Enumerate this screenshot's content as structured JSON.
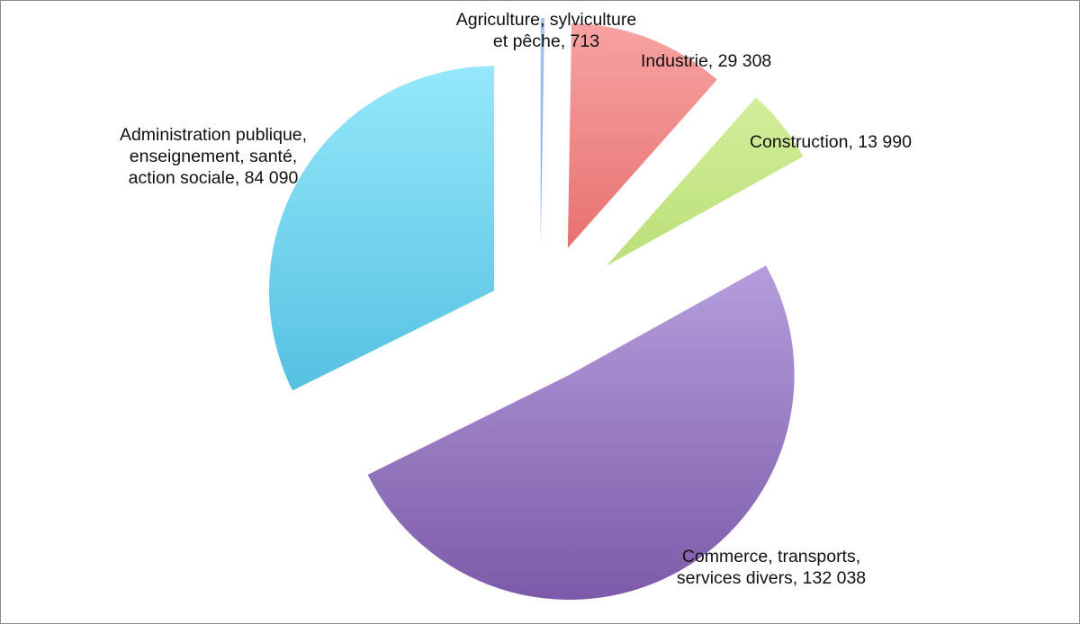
{
  "chart_data": {
    "type": "pie",
    "exploded": true,
    "gradient_fill": true,
    "slices": [
      {
        "name": "Agriculture, sylviculture et pêche",
        "value": 713,
        "label_lines": [
          "Agriculture, sylviculture",
          "et pêche, 713"
        ],
        "color_light": "#a9c6ef",
        "color_dark": "#4f7fc6"
      },
      {
        "name": "Industrie",
        "value": 29308,
        "label_lines": [
          "Industrie, 29 308"
        ],
        "color_light": "#f7a3a2",
        "color_dark": "#d8403f"
      },
      {
        "name": "Construction",
        "value": 13990,
        "label_lines": [
          "Construction, 13 990"
        ],
        "color_light": "#dcf2a7",
        "color_dark": "#98cd48"
      },
      {
        "name": "Commerce, transports, services divers",
        "value": 132038,
        "label_lines": [
          "Commerce, transports,",
          "services divers, 132 038"
        ],
        "color_light": "#c9b5ee",
        "color_dark": "#7c5aa9"
      },
      {
        "name": "Administration publique, enseignement, santé, action sociale",
        "value": 84090,
        "label_lines": [
          "Administration publique,",
          "enseignement, santé,",
          "action sociale, 84 090"
        ],
        "color_light": "#95e8fa",
        "color_dark": "#3db2d9"
      }
    ]
  }
}
